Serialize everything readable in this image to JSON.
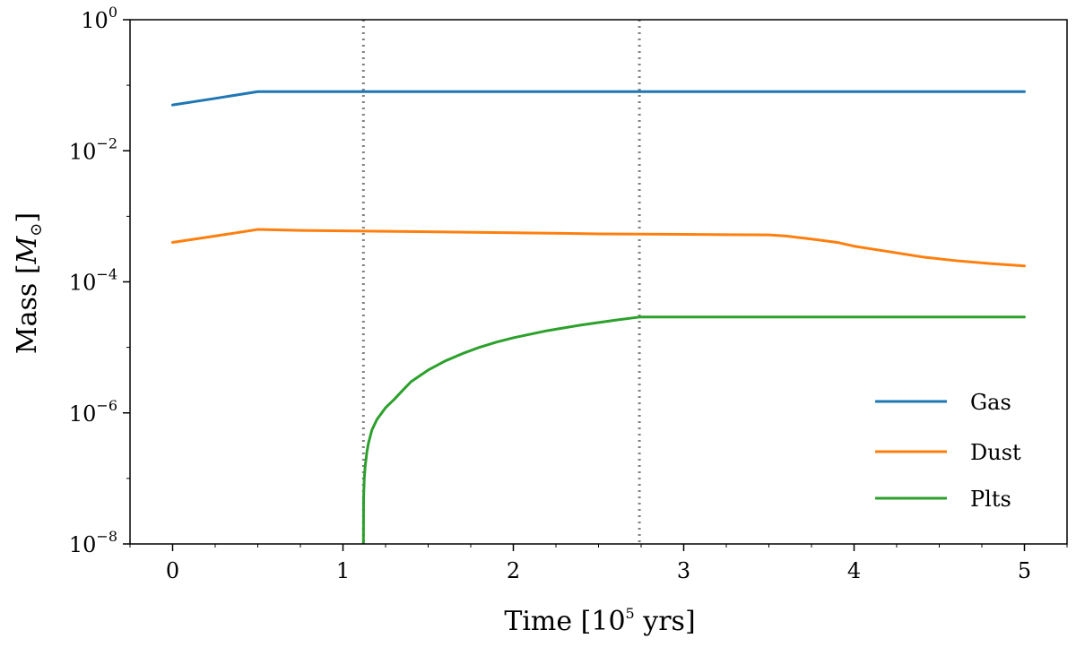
{
  "chart_data": {
    "type": "line",
    "xlabel": "Time [10",
    "xlabel_exp": "5",
    "xlabel_suffix": " yrs]",
    "ylabel": "Mass [",
    "ylabel_symbol": "M",
    "ylabel_sub": "⊙",
    "ylabel_suffix": "]",
    "xlim": [
      -0.25,
      5.25
    ],
    "ylim": [
      1e-08,
      1
    ],
    "yscale": "log",
    "grid": false,
    "legend_position": "lower-right",
    "x_ticks": [
      {
        "value": 0,
        "label": "0"
      },
      {
        "value": 1,
        "label": "1"
      },
      {
        "value": 2,
        "label": "2"
      },
      {
        "value": 3,
        "label": "3"
      },
      {
        "value": 4,
        "label": "4"
      },
      {
        "value": 5,
        "label": "5"
      }
    ],
    "y_ticks": [
      {
        "value": 1e-08,
        "base": "10",
        "exp": "−8"
      },
      {
        "value": 1e-06,
        "base": "10",
        "exp": "−6"
      },
      {
        "value": 0.0001,
        "base": "10",
        "exp": "−4"
      },
      {
        "value": 0.01,
        "base": "10",
        "exp": "−2"
      },
      {
        "value": 1,
        "base": "10",
        "exp": "0"
      }
    ],
    "vlines": [
      1.12,
      2.74
    ],
    "series": [
      {
        "name": "Gas",
        "color": "#1f77b4",
        "x": [
          0,
          0.25,
          0.5,
          1,
          2,
          3,
          4,
          5
        ],
        "y": [
          0.05,
          0.063,
          0.08,
          0.08,
          0.08,
          0.08,
          0.08,
          0.08
        ]
      },
      {
        "name": "Dust",
        "color": "#ff7f0e",
        "x": [
          0,
          0.25,
          0.5,
          0.75,
          1,
          1.5,
          2,
          2.5,
          3,
          3.25,
          3.5,
          3.6,
          3.75,
          3.9,
          4,
          4.2,
          4.4,
          4.6,
          4.8,
          5
        ],
        "y": [
          0.0004,
          0.0005,
          0.00063,
          0.00061,
          0.0006,
          0.00058,
          0.00056,
          0.00054,
          0.00053,
          0.000525,
          0.00052,
          0.0005,
          0.00045,
          0.0004,
          0.00035,
          0.00029,
          0.00024,
          0.00021,
          0.00019,
          0.000175
        ]
      },
      {
        "name": "Plts",
        "color": "#2ca02c",
        "x": [
          1.12,
          1.121,
          1.125,
          1.13,
          1.14,
          1.15,
          1.17,
          1.2,
          1.25,
          1.3,
          1.35,
          1.4,
          1.5,
          1.6,
          1.7,
          1.8,
          1.9,
          2.0,
          2.2,
          2.4,
          2.6,
          2.74,
          3,
          4,
          5
        ],
        "y": [
          1e-08,
          5e-08,
          1e-07,
          1.5e-07,
          2.5e-07,
          3.5e-07,
          5.5e-07,
          8e-07,
          1.2e-06,
          1.6e-06,
          2.2e-06,
          3e-06,
          4.5e-06,
          6.2e-06,
          8e-06,
          1e-05,
          1.2e-05,
          1.4e-05,
          1.8e-05,
          2.2e-05,
          2.6e-05,
          2.9e-05,
          2.9e-05,
          2.9e-05,
          2.9e-05
        ]
      }
    ]
  }
}
